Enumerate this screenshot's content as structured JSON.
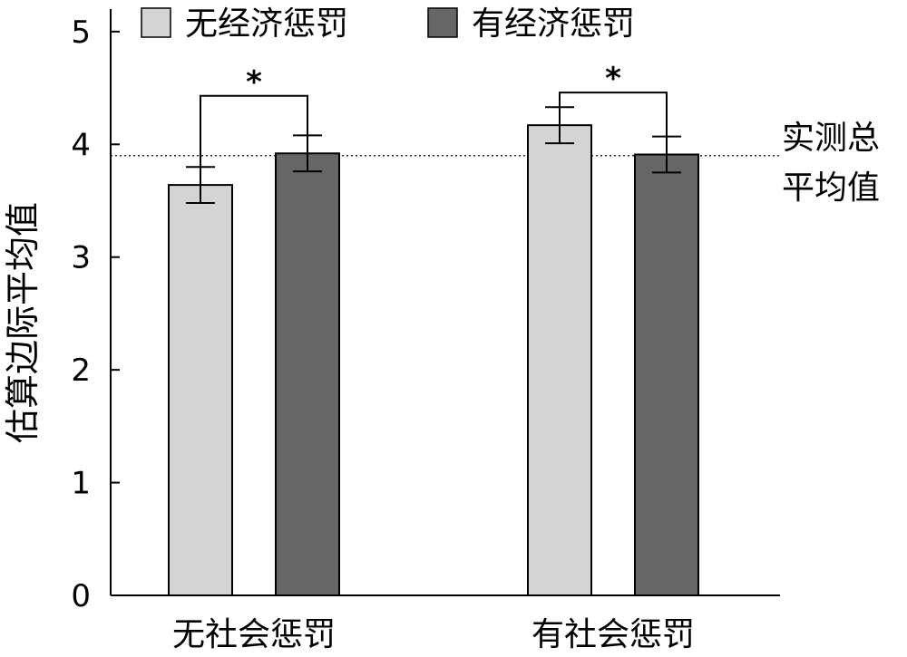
{
  "chart_data": {
    "type": "bar",
    "categories": [
      "无社会惩罚",
      "有社会惩罚"
    ],
    "series": [
      {
        "name": "无经济惩罚",
        "color": "#d4d4d4",
        "values": [
          3.64,
          4.17
        ],
        "errors": [
          0.16,
          0.16
        ]
      },
      {
        "name": "有经济惩罚",
        "color": "#666666",
        "values": [
          3.92,
          3.91
        ],
        "errors": [
          0.16,
          0.16
        ]
      }
    ],
    "ylabel": "估算边际平均值",
    "ylim": [
      0,
      5.2
    ],
    "yticks": [
      0,
      1,
      2,
      3,
      4,
      5
    ],
    "legend_position": "top",
    "reference_line": {
      "value": 3.9,
      "label_lines": [
        "实测总",
        "平均值"
      ],
      "style": "dotted"
    },
    "significance": [
      {
        "category_index": 0,
        "bracket_top": 4.43,
        "label": "*"
      },
      {
        "category_index": 1,
        "bracket_top": 4.46,
        "label": "*"
      }
    ],
    "grid": false
  }
}
